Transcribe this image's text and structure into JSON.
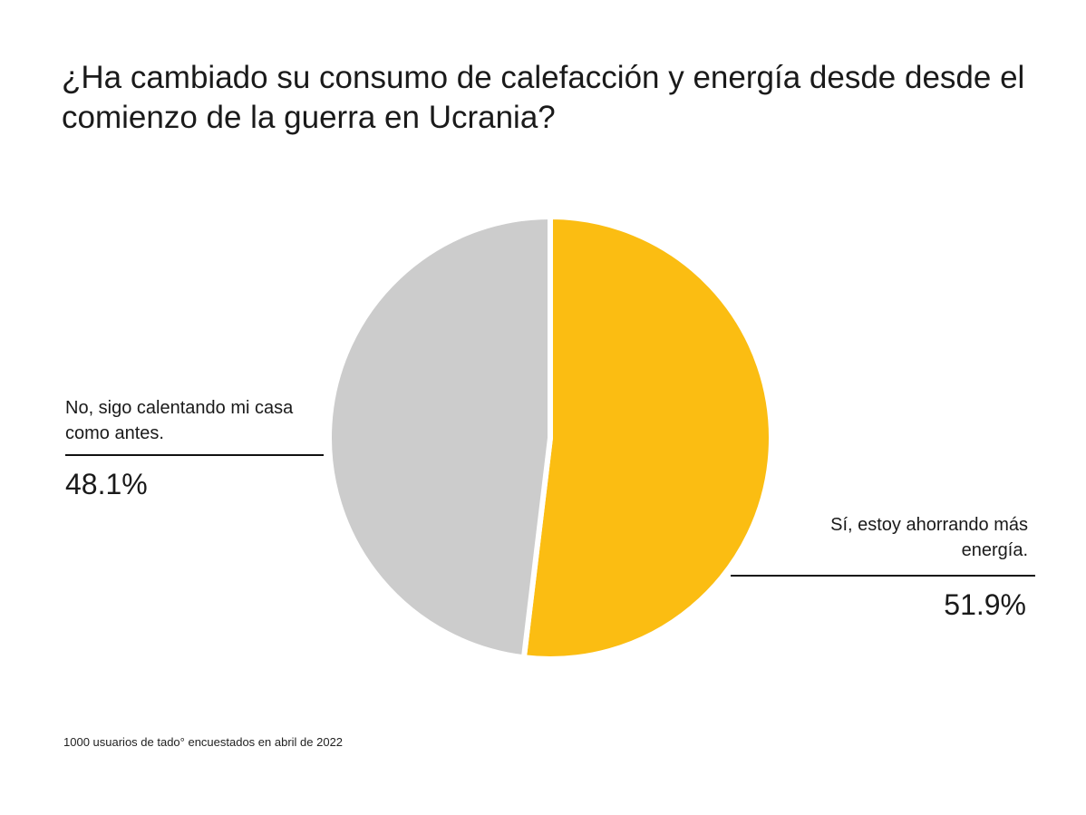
{
  "chart_data": {
    "type": "pie",
    "title": "¿Ha cambiado su consumo de calefacción y energía desde desde el comienzo de la guerra en Ucrania?",
    "slices": [
      {
        "label": "Sí, estoy ahorrando más energía.",
        "value": 51.9,
        "value_label": "51.9%",
        "color": "#FBBD12"
      },
      {
        "label": "No, sigo calentando mi casa como antes.",
        "value": 48.1,
        "value_label": "48.1%",
        "color": "#CCCCCC"
      }
    ],
    "footnote": "1000 usuarios de tado° encuestados en abril de 2022"
  },
  "colors": {
    "separator": "#ffffff",
    "text": "#1a1a1a"
  }
}
